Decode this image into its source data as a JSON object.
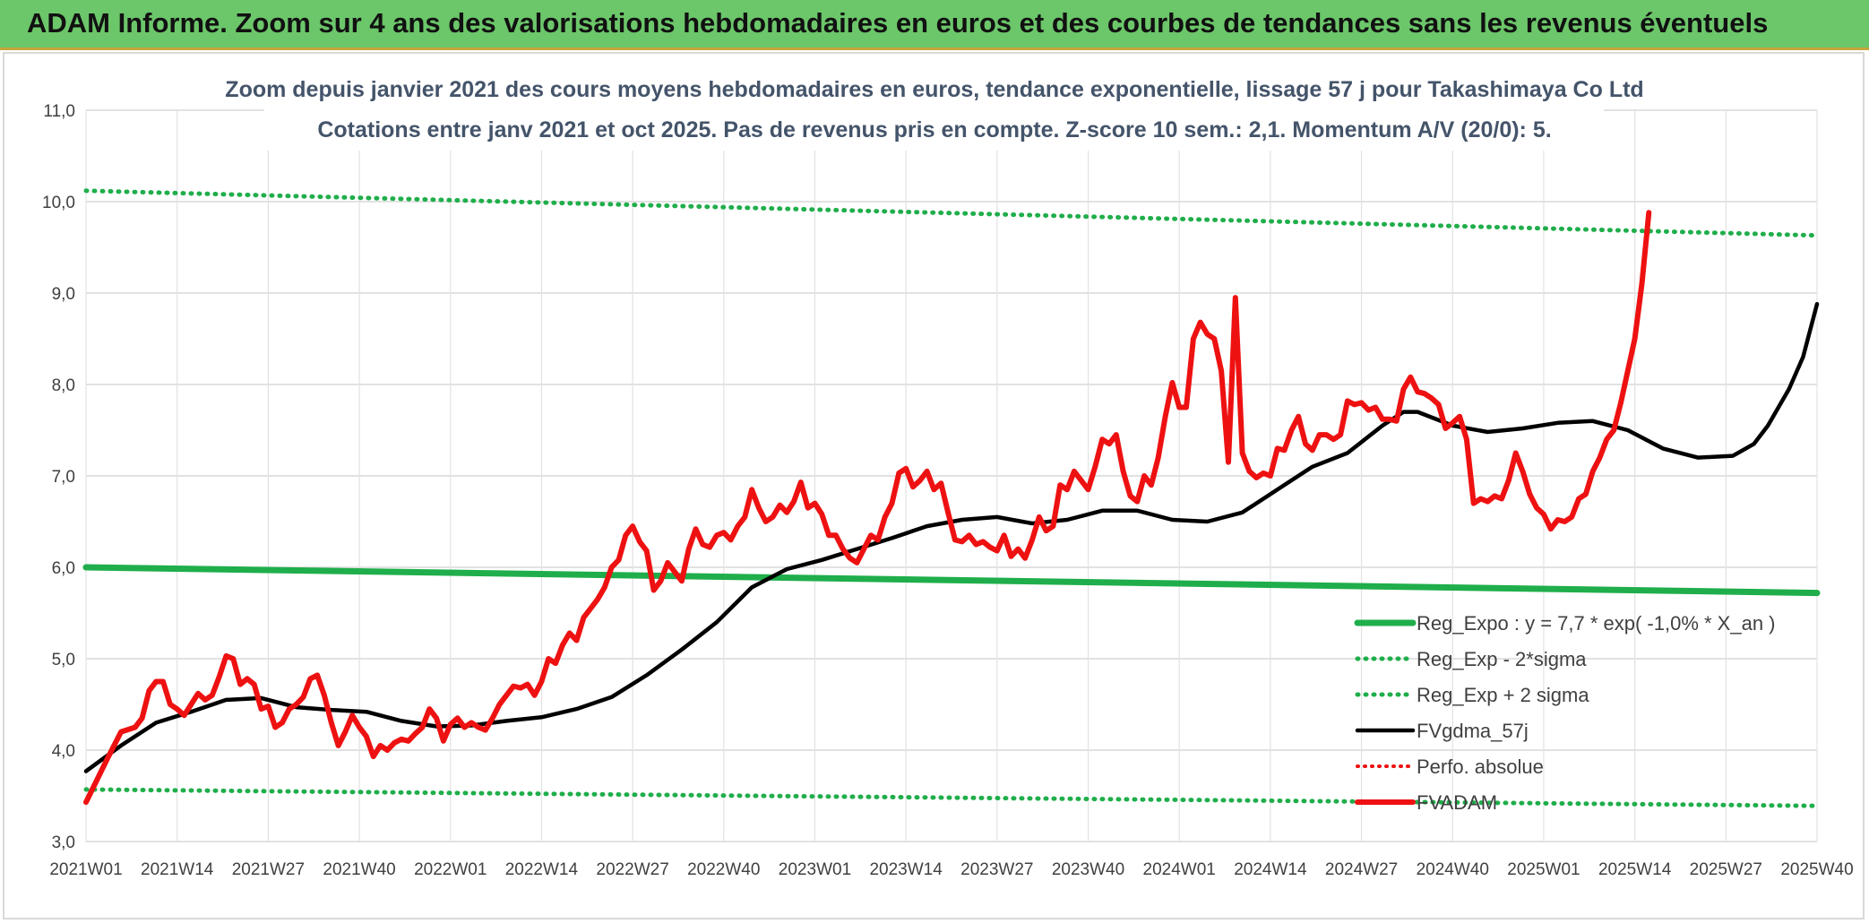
{
  "header": {
    "title": "ADAM Informe. Zoom sur 4 ans des valorisations hebdomadaires en euros et des courbes de tendances sans les revenus éventuels"
  },
  "colors": {
    "header_bg": "#6cc66a",
    "trend": "#1fae4b",
    "ma": "#000000",
    "price": "#ee1111",
    "perf": "#ee1111",
    "grid": "#d9d9d9"
  },
  "chart_data": {
    "type": "line",
    "title": "Zoom depuis janvier 2021 des cours moyens hebdomadaires en euros, tendance exponentielle, lissage 57 j pour Takashimaya Co Ltd",
    "subtitle": "Cotations entre janv 2021 et oct 2025. Pas de revenus pris en compte. Z-score 10 sem.: 2,1. Momentum A/V (20/0): 5.",
    "ylim": [
      3.0,
      11.0
    ],
    "yticks": [
      "3,0",
      "4,0",
      "5,0",
      "6,0",
      "7,0",
      "8,0",
      "9,0",
      "10,0",
      "11,0"
    ],
    "xlim": [
      0,
      247
    ],
    "categories": [
      "2021W01",
      "2021W14",
      "2021W27",
      "2021W40",
      "2022W01",
      "2022W14",
      "2022W27",
      "2022W40",
      "2023W01",
      "2023W14",
      "2023W27",
      "2023W40",
      "2024W01",
      "2024W14",
      "2024W27",
      "2024W40",
      "2025W01",
      "2025W14",
      "2025W27",
      "2025W40"
    ],
    "legend_position": "bottom-right",
    "series": [
      {
        "name": "Reg_Expo : y = 7,7 * exp( -1,0% *  X_an )",
        "style": "solid",
        "color": "#1fae4b",
        "points": [
          [
            0,
            6.0
          ],
          [
            247,
            5.72
          ]
        ]
      },
      {
        "name": "Reg_Exp - 2*sigma",
        "style": "dotted",
        "color": "#1fae4b",
        "points": [
          [
            0,
            3.57
          ],
          [
            247,
            3.39
          ]
        ]
      },
      {
        "name": "Reg_Exp + 2 sigma",
        "style": "dotted",
        "color": "#1fae4b",
        "points": [
          [
            0,
            10.12
          ],
          [
            247,
            9.63
          ]
        ]
      },
      {
        "name": "FVgdma_57j",
        "style": "solid",
        "color": "#000000",
        "points": [
          [
            0,
            3.77
          ],
          [
            5,
            4.05
          ],
          [
            10,
            4.3
          ],
          [
            15,
            4.42
          ],
          [
            20,
            4.55
          ],
          [
            25,
            4.57
          ],
          [
            30,
            4.47
          ],
          [
            35,
            4.44
          ],
          [
            40,
            4.42
          ],
          [
            45,
            4.32
          ],
          [
            50,
            4.26
          ],
          [
            55,
            4.27
          ],
          [
            60,
            4.32
          ],
          [
            65,
            4.36
          ],
          [
            70,
            4.45
          ],
          [
            75,
            4.58
          ],
          [
            80,
            4.82
          ],
          [
            85,
            5.1
          ],
          [
            90,
            5.4
          ],
          [
            95,
            5.78
          ],
          [
            100,
            5.98
          ],
          [
            105,
            6.08
          ],
          [
            110,
            6.2
          ],
          [
            115,
            6.32
          ],
          [
            120,
            6.45
          ],
          [
            125,
            6.52
          ],
          [
            130,
            6.55
          ],
          [
            135,
            6.48
          ],
          [
            140,
            6.52
          ],
          [
            145,
            6.62
          ],
          [
            150,
            6.62
          ],
          [
            155,
            6.52
          ],
          [
            160,
            6.5
          ],
          [
            165,
            6.6
          ],
          [
            170,
            6.85
          ],
          [
            175,
            7.1
          ],
          [
            180,
            7.25
          ],
          [
            185,
            7.55
          ],
          [
            188,
            7.7
          ],
          [
            190,
            7.7
          ],
          [
            195,
            7.55
          ],
          [
            200,
            7.48
          ],
          [
            205,
            7.52
          ],
          [
            210,
            7.58
          ],
          [
            215,
            7.6
          ],
          [
            220,
            7.5
          ],
          [
            225,
            7.3
          ],
          [
            230,
            7.2
          ],
          [
            235,
            7.22
          ],
          [
            238,
            7.35
          ],
          [
            240,
            7.55
          ],
          [
            243,
            7.95
          ],
          [
            245,
            8.3
          ],
          [
            247,
            8.88
          ]
        ]
      },
      {
        "name": "Perfo. absolue",
        "style": "dotted",
        "color": "#ee1111",
        "points": []
      },
      {
        "name": "FVADAM",
        "style": "solid",
        "color": "#ee1111",
        "points": [
          [
            0,
            3.43
          ],
          [
            3,
            3.9
          ],
          [
            5,
            4.2
          ],
          [
            7,
            4.25
          ],
          [
            8,
            4.35
          ],
          [
            9,
            4.65
          ],
          [
            10,
            4.75
          ],
          [
            11,
            4.75
          ],
          [
            12,
            4.5
          ],
          [
            13,
            4.45
          ],
          [
            14,
            4.38
          ],
          [
            15,
            4.5
          ],
          [
            16,
            4.62
          ],
          [
            17,
            4.55
          ],
          [
            18,
            4.6
          ],
          [
            19,
            4.8
          ],
          [
            20,
            5.03
          ],
          [
            21,
            5.0
          ],
          [
            22,
            4.72
          ],
          [
            23,
            4.78
          ],
          [
            24,
            4.72
          ],
          [
            25,
            4.45
          ],
          [
            26,
            4.48
          ],
          [
            27,
            4.25
          ],
          [
            28,
            4.3
          ],
          [
            29,
            4.45
          ],
          [
            30,
            4.5
          ],
          [
            31,
            4.58
          ],
          [
            32,
            4.78
          ],
          [
            33,
            4.82
          ],
          [
            34,
            4.6
          ],
          [
            35,
            4.3
          ],
          [
            36,
            4.05
          ],
          [
            37,
            4.2
          ],
          [
            38,
            4.38
          ],
          [
            39,
            4.25
          ],
          [
            40,
            4.15
          ],
          [
            41,
            3.93
          ],
          [
            42,
            4.05
          ],
          [
            43,
            4.0
          ],
          [
            44,
            4.08
          ],
          [
            45,
            4.12
          ],
          [
            46,
            4.1
          ],
          [
            47,
            4.18
          ],
          [
            48,
            4.25
          ],
          [
            49,
            4.45
          ],
          [
            50,
            4.35
          ],
          [
            51,
            4.1
          ],
          [
            52,
            4.28
          ],
          [
            53,
            4.35
          ],
          [
            54,
            4.25
          ],
          [
            55,
            4.3
          ],
          [
            56,
            4.25
          ],
          [
            57,
            4.22
          ],
          [
            58,
            4.35
          ],
          [
            59,
            4.5
          ],
          [
            60,
            4.6
          ],
          [
            61,
            4.7
          ],
          [
            62,
            4.68
          ],
          [
            63,
            4.72
          ],
          [
            64,
            4.6
          ],
          [
            65,
            4.75
          ],
          [
            66,
            5.0
          ],
          [
            67,
            4.95
          ],
          [
            68,
            5.15
          ],
          [
            69,
            5.28
          ],
          [
            70,
            5.2
          ],
          [
            71,
            5.45
          ],
          [
            72,
            5.55
          ],
          [
            73,
            5.65
          ],
          [
            74,
            5.78
          ],
          [
            75,
            6.0
          ],
          [
            76,
            6.08
          ],
          [
            77,
            6.35
          ],
          [
            78,
            6.45
          ],
          [
            79,
            6.28
          ],
          [
            80,
            6.18
          ],
          [
            81,
            5.75
          ],
          [
            82,
            5.85
          ],
          [
            83,
            6.05
          ],
          [
            84,
            5.95
          ],
          [
            85,
            5.85
          ],
          [
            86,
            6.2
          ],
          [
            87,
            6.42
          ],
          [
            88,
            6.25
          ],
          [
            89,
            6.22
          ],
          [
            90,
            6.35
          ],
          [
            91,
            6.38
          ],
          [
            92,
            6.3
          ],
          [
            93,
            6.45
          ],
          [
            94,
            6.55
          ],
          [
            95,
            6.85
          ],
          [
            96,
            6.65
          ],
          [
            97,
            6.5
          ],
          [
            98,
            6.55
          ],
          [
            99,
            6.68
          ],
          [
            100,
            6.6
          ],
          [
            101,
            6.72
          ],
          [
            102,
            6.93
          ],
          [
            103,
            6.65
          ],
          [
            104,
            6.7
          ],
          [
            105,
            6.58
          ],
          [
            106,
            6.35
          ],
          [
            107,
            6.35
          ],
          [
            108,
            6.2
          ],
          [
            109,
            6.1
          ],
          [
            110,
            6.05
          ],
          [
            111,
            6.2
          ],
          [
            112,
            6.35
          ],
          [
            113,
            6.3
          ],
          [
            114,
            6.55
          ],
          [
            115,
            6.7
          ],
          [
            116,
            7.03
          ],
          [
            117,
            7.08
          ],
          [
            118,
            6.88
          ],
          [
            119,
            6.95
          ],
          [
            120,
            7.05
          ],
          [
            121,
            6.85
          ],
          [
            122,
            6.92
          ],
          [
            123,
            6.6
          ],
          [
            124,
            6.3
          ],
          [
            125,
            6.28
          ],
          [
            126,
            6.35
          ],
          [
            127,
            6.25
          ],
          [
            128,
            6.28
          ],
          [
            129,
            6.22
          ],
          [
            130,
            6.18
          ],
          [
            131,
            6.35
          ],
          [
            132,
            6.12
          ],
          [
            133,
            6.2
          ],
          [
            134,
            6.1
          ],
          [
            135,
            6.3
          ],
          [
            136,
            6.55
          ],
          [
            137,
            6.4
          ],
          [
            138,
            6.45
          ],
          [
            139,
            6.9
          ],
          [
            140,
            6.85
          ],
          [
            141,
            7.05
          ],
          [
            142,
            6.95
          ],
          [
            143,
            6.85
          ],
          [
            144,
            7.1
          ],
          [
            145,
            7.4
          ],
          [
            146,
            7.35
          ],
          [
            147,
            7.45
          ],
          [
            148,
            7.05
          ],
          [
            149,
            6.78
          ],
          [
            150,
            6.72
          ],
          [
            151,
            7.0
          ],
          [
            152,
            6.9
          ],
          [
            153,
            7.2
          ],
          [
            154,
            7.65
          ],
          [
            155,
            8.02
          ],
          [
            156,
            7.75
          ],
          [
            157,
            7.75
          ],
          [
            158,
            8.5
          ],
          [
            159,
            8.68
          ],
          [
            160,
            8.55
          ],
          [
            161,
            8.5
          ],
          [
            162,
            8.15
          ],
          [
            163,
            7.15
          ],
          [
            164,
            8.95
          ],
          [
            165,
            7.25
          ],
          [
            166,
            7.05
          ],
          [
            167,
            6.98
          ],
          [
            168,
            7.03
          ],
          [
            169,
            7.0
          ],
          [
            170,
            7.3
          ],
          [
            171,
            7.28
          ],
          [
            172,
            7.5
          ],
          [
            173,
            7.65
          ],
          [
            174,
            7.35
          ],
          [
            175,
            7.28
          ],
          [
            176,
            7.45
          ],
          [
            177,
            7.45
          ],
          [
            178,
            7.4
          ],
          [
            179,
            7.45
          ],
          [
            180,
            7.82
          ],
          [
            181,
            7.78
          ],
          [
            182,
            7.8
          ],
          [
            183,
            7.72
          ],
          [
            184,
            7.75
          ],
          [
            185,
            7.62
          ],
          [
            186,
            7.62
          ],
          [
            187,
            7.6
          ],
          [
            188,
            7.95
          ],
          [
            189,
            8.08
          ],
          [
            190,
            7.92
          ],
          [
            191,
            7.9
          ],
          [
            192,
            7.85
          ],
          [
            193,
            7.78
          ],
          [
            194,
            7.52
          ],
          [
            195,
            7.58
          ],
          [
            196,
            7.65
          ],
          [
            197,
            7.4
          ],
          [
            198,
            6.7
          ],
          [
            199,
            6.75
          ],
          [
            200,
            6.72
          ],
          [
            201,
            6.78
          ],
          [
            202,
            6.75
          ],
          [
            203,
            6.95
          ],
          [
            204,
            7.25
          ],
          [
            205,
            7.05
          ],
          [
            206,
            6.8
          ],
          [
            207,
            6.65
          ],
          [
            208,
            6.58
          ],
          [
            209,
            6.42
          ],
          [
            210,
            6.52
          ],
          [
            211,
            6.5
          ],
          [
            212,
            6.55
          ],
          [
            213,
            6.75
          ],
          [
            214,
            6.8
          ],
          [
            215,
            7.05
          ],
          [
            216,
            7.2
          ],
          [
            217,
            7.4
          ],
          [
            218,
            7.5
          ],
          [
            219,
            7.8
          ],
          [
            220,
            8.15
          ],
          [
            221,
            8.5
          ],
          [
            222,
            9.1
          ],
          [
            223,
            9.88
          ]
        ]
      }
    ]
  }
}
